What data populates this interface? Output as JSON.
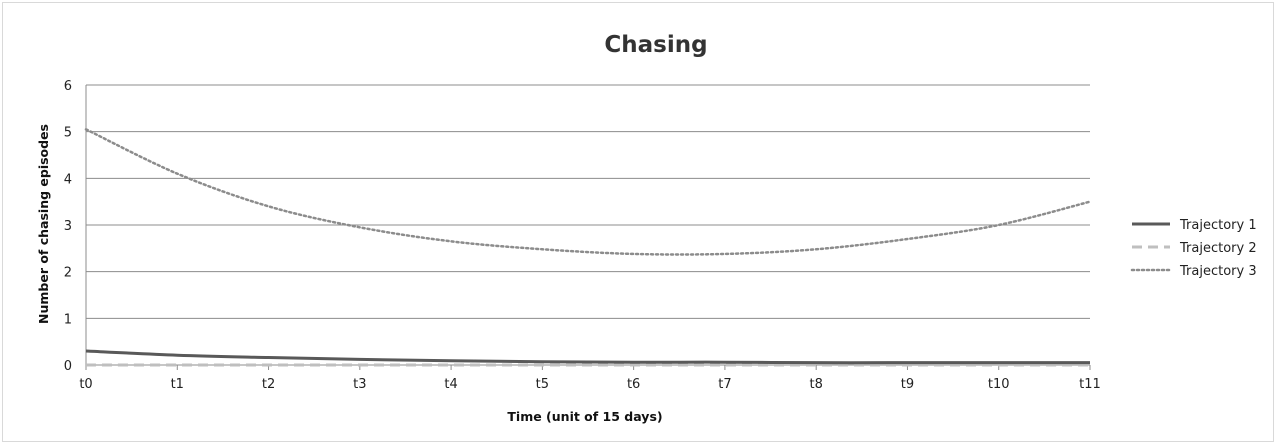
{
  "chart_data": {
    "type": "line",
    "title": "Chasing",
    "xlabel": "Time (unit of 15 days)",
    "ylabel": "Number of chasing episodes",
    "categories": [
      "t0",
      "t1",
      "t2",
      "t3",
      "t4",
      "t5",
      "t6",
      "t7",
      "t8",
      "t9",
      "t10",
      "t11"
    ],
    "ylim": [
      0,
      6
    ],
    "yticks": [
      0,
      1,
      2,
      3,
      4,
      5,
      6
    ],
    "grid": true,
    "legend_position": "right",
    "series": [
      {
        "name": "Trajectory 1",
        "style": "solid",
        "color": "#595959",
        "values": [
          0.3,
          0.21,
          0.16,
          0.12,
          0.09,
          0.07,
          0.06,
          0.06,
          0.05,
          0.05,
          0.05,
          0.05
        ]
      },
      {
        "name": "Trajectory 2",
        "style": "dashed",
        "color": "#bfbfbf",
        "values": [
          0.0,
          0.0,
          0.0,
          0.0,
          0.0,
          0.0,
          0.0,
          0.0,
          0.0,
          0.0,
          0.0,
          0.0
        ]
      },
      {
        "name": "Trajectory 3",
        "style": "dotted",
        "color": "#8c8c8c",
        "values": [
          5.05,
          4.1,
          3.4,
          2.95,
          2.65,
          2.48,
          2.38,
          2.38,
          2.48,
          2.7,
          3.0,
          3.5
        ]
      }
    ]
  }
}
